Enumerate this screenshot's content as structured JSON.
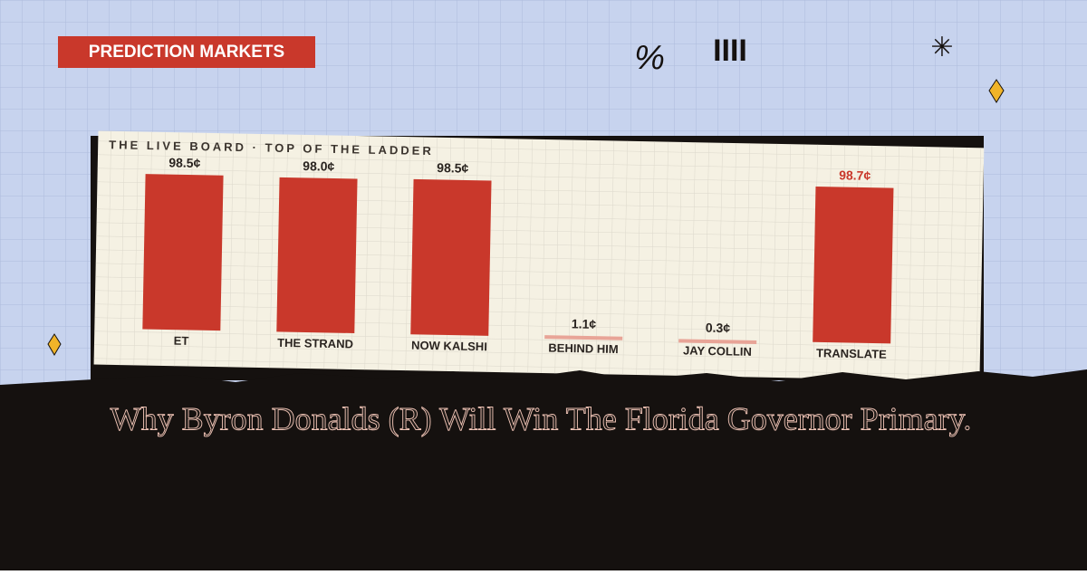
{
  "badge": "PREDICTION MARKETS",
  "doodles": [
    "%",
    "IIII",
    "✳"
  ],
  "headline": "Why Byron Donalds (R) Will Win The Florida Governor Primary.",
  "chart_data": {
    "type": "bar",
    "title": "THE LIVE BOARD · TOP OF THE LADDER",
    "categories": [
      "ET",
      "THE STRAND",
      "NOW KALSHI",
      "BEHIND HIM",
      "JAY COLLIN",
      "TRANSLATE"
    ],
    "values": [
      98.5,
      98.0,
      98.5,
      1.1,
      0.3,
      98.7
    ],
    "value_labels": [
      "98.5¢",
      "98.0¢",
      "98.5¢",
      "1.1¢",
      "0.3¢",
      "98.7¢"
    ],
    "colors": [
      "#c9382b",
      "#c9382b",
      "#c9382b",
      "#e8a497",
      "#e8a497",
      "#c9382b"
    ],
    "label_colors": [
      "#2a2420",
      "#2a2420",
      "#2a2420",
      "#2a2420",
      "#2a2420",
      "#c9382b"
    ],
    "ylim": [
      0,
      100
    ]
  }
}
